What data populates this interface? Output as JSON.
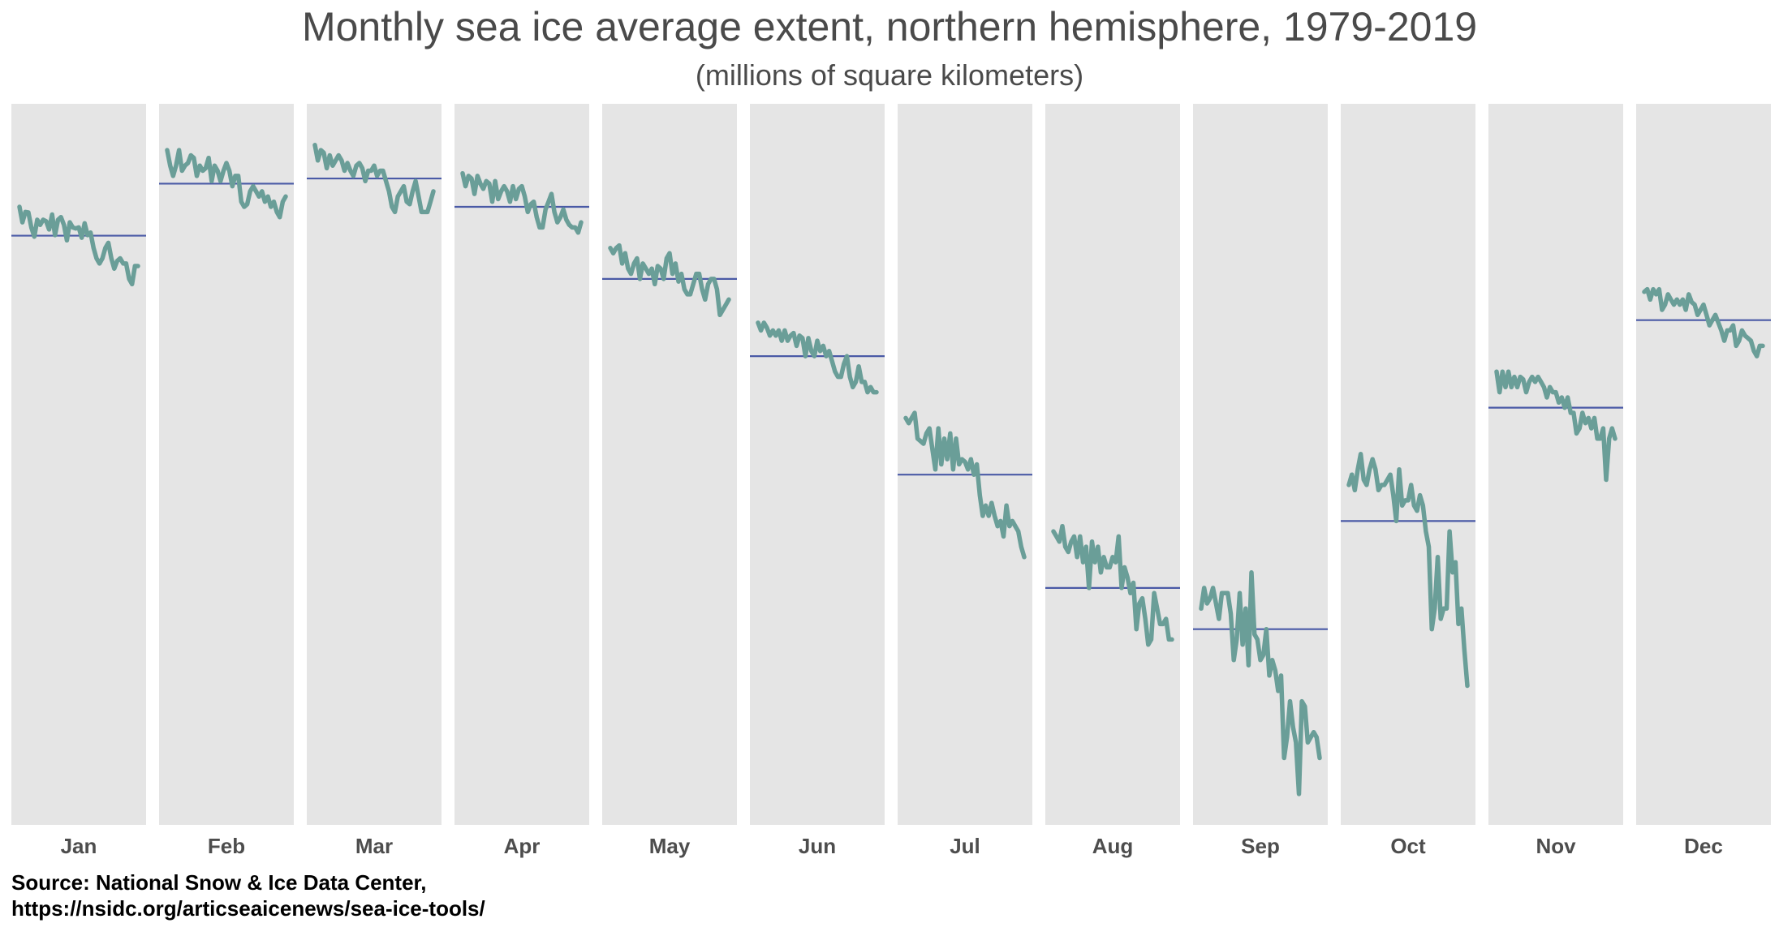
{
  "title": "Monthly sea ice average extent, northern hemisphere, 1979-2019",
  "subtitle": "(millions of square kilometers)",
  "source_line1": "Source: National Snow & Ice Data Center,",
  "source_line2": "https://nsidc.org/articseaicenews/sea-ice-tools/",
  "colors": {
    "panel_bg": "#e5e5e5",
    "series": "#6a9e98",
    "mean_line": "#4a5aa6"
  },
  "chart_data": {
    "type": "line",
    "title": "Monthly sea ice average extent, northern hemisphere, 1979-2019",
    "subtitle": "(millions of square kilometers)",
    "x": [
      1979,
      1980,
      1981,
      1982,
      1983,
      1984,
      1985,
      1986,
      1987,
      1988,
      1989,
      1990,
      1991,
      1992,
      1993,
      1994,
      1995,
      1996,
      1997,
      1998,
      1999,
      2000,
      2001,
      2002,
      2003,
      2004,
      2005,
      2006,
      2007,
      2008,
      2009,
      2010,
      2011,
      2012,
      2013,
      2014,
      2015,
      2016,
      2017,
      2018,
      2019
    ],
    "ylim": [
      3.0,
      17.0
    ],
    "grid": false,
    "facets": [
      {
        "label": "Jan",
        "mean": 14.44,
        "values": [
          15.0,
          14.7,
          14.9,
          14.89,
          14.6,
          14.42,
          14.75,
          14.65,
          14.75,
          14.72,
          14.56,
          14.85,
          14.45,
          14.75,
          14.8,
          14.65,
          14.35,
          14.7,
          14.6,
          14.58,
          14.6,
          14.4,
          14.68,
          14.45,
          14.5,
          14.2,
          14.0,
          13.9,
          14.0,
          14.2,
          14.3,
          14.0,
          13.8,
          13.95,
          14.0,
          13.9,
          13.9,
          13.6,
          13.5,
          13.85,
          13.85
        ]
      },
      {
        "label": "Feb",
        "mean": 15.45,
        "values": [
          16.1,
          15.8,
          15.6,
          15.8,
          16.1,
          15.7,
          15.8,
          15.85,
          16.0,
          15.95,
          15.6,
          15.8,
          15.7,
          15.75,
          15.95,
          15.5,
          15.8,
          15.7,
          15.5,
          15.7,
          15.85,
          15.7,
          15.4,
          15.6,
          15.6,
          15.1,
          15.0,
          15.05,
          15.3,
          15.4,
          15.3,
          15.2,
          15.3,
          15.1,
          15.2,
          15.0,
          15.1,
          14.9,
          14.8,
          15.1,
          15.2
        ]
      },
      {
        "label": "Mar",
        "mean": 15.55,
        "values": [
          16.2,
          15.9,
          16.1,
          16.05,
          15.75,
          16.0,
          15.8,
          15.9,
          16.0,
          15.9,
          15.7,
          15.85,
          15.7,
          15.6,
          15.8,
          15.85,
          15.75,
          15.5,
          15.7,
          15.7,
          15.8,
          15.6,
          15.7,
          15.7,
          15.5,
          15.3,
          15.0,
          14.9,
          15.2,
          15.3,
          15.4,
          15.1,
          15.05,
          15.3,
          15.5,
          15.2,
          14.9,
          14.9,
          14.9,
          15.1,
          15.3
        ]
      },
      {
        "label": "Apr",
        "mean": 15.0,
        "values": [
          15.65,
          15.4,
          15.6,
          15.55,
          15.25,
          15.6,
          15.45,
          15.35,
          15.5,
          15.45,
          15.1,
          15.5,
          15.15,
          15.3,
          15.4,
          15.3,
          15.1,
          15.4,
          15.15,
          15.35,
          15.4,
          15.2,
          14.9,
          15.05,
          15.1,
          14.8,
          14.6,
          14.6,
          14.95,
          15.1,
          15.25,
          14.9,
          14.7,
          14.8,
          14.95,
          14.75,
          14.65,
          14.6,
          14.6,
          14.5,
          14.7
        ]
      },
      {
        "label": "May",
        "mean": 13.6,
        "values": [
          14.2,
          14.1,
          14.2,
          14.25,
          13.9,
          14.1,
          13.8,
          13.7,
          13.9,
          14.0,
          13.6,
          13.9,
          13.8,
          13.7,
          13.8,
          13.5,
          13.85,
          13.8,
          13.6,
          14.0,
          14.1,
          13.7,
          13.9,
          13.55,
          13.7,
          13.4,
          13.3,
          13.3,
          13.5,
          13.7,
          13.7,
          13.4,
          13.2,
          13.5,
          13.6,
          13.6,
          13.4,
          12.9,
          13.0,
          13.1,
          13.2
        ]
      },
      {
        "label": "Jun",
        "mean": 12.1,
        "values": [
          12.75,
          12.6,
          12.75,
          12.65,
          12.5,
          12.6,
          12.5,
          12.6,
          12.4,
          12.6,
          12.4,
          12.5,
          12.55,
          12.3,
          12.5,
          12.45,
          12.1,
          12.45,
          12.2,
          12.1,
          12.4,
          12.2,
          12.3,
          12.1,
          12.2,
          12.0,
          11.8,
          11.7,
          11.7,
          11.95,
          12.1,
          11.7,
          11.5,
          11.6,
          11.9,
          11.6,
          11.6,
          11.4,
          11.5,
          11.4,
          11.4
        ]
      },
      {
        "label": "Jul",
        "mean": 9.8,
        "values": [
          10.9,
          10.8,
          10.9,
          11.0,
          10.5,
          10.45,
          10.4,
          10.6,
          10.7,
          10.3,
          9.9,
          10.7,
          10.0,
          10.5,
          10.1,
          10.6,
          9.9,
          10.5,
          10.0,
          10.1,
          10.05,
          9.9,
          10.1,
          9.8,
          10.0,
          9.4,
          9.0,
          9.2,
          9.0,
          9.25,
          9.0,
          8.8,
          8.9,
          8.6,
          9.2,
          8.8,
          8.9,
          8.8,
          8.7,
          8.4,
          8.2
        ]
      },
      {
        "label": "Aug",
        "mean": 7.6,
        "values": [
          8.7,
          8.6,
          8.5,
          8.8,
          8.4,
          8.3,
          8.5,
          8.6,
          8.2,
          8.6,
          8.1,
          8.4,
          7.6,
          8.5,
          8.1,
          8.4,
          7.9,
          8.2,
          8.0,
          8.0,
          8.2,
          8.1,
          8.6,
          7.6,
          8.0,
          7.8,
          7.5,
          7.7,
          6.8,
          7.3,
          7.4,
          7.0,
          6.5,
          6.6,
          7.5,
          7.2,
          6.9,
          6.9,
          7.0,
          6.6,
          6.6
        ]
      },
      {
        "label": "Sep",
        "mean": 6.8,
        "values": [
          7.2,
          7.6,
          7.3,
          7.4,
          7.6,
          7.3,
          7.0,
          7.5,
          7.5,
          7.5,
          7.1,
          6.2,
          6.6,
          7.5,
          6.5,
          7.2,
          6.1,
          7.9,
          6.7,
          6.6,
          6.2,
          6.3,
          6.8,
          5.9,
          6.2,
          6.0,
          5.6,
          5.9,
          4.3,
          4.7,
          5.4,
          4.9,
          4.6,
          3.6,
          5.4,
          5.3,
          4.6,
          4.7,
          4.8,
          4.7,
          4.3
        ]
      },
      {
        "label": "Oct",
        "mean": 8.9,
        "values": [
          9.6,
          9.8,
          9.5,
          9.9,
          10.2,
          9.7,
          9.6,
          9.9,
          10.1,
          9.9,
          9.5,
          9.6,
          9.6,
          9.7,
          9.8,
          9.4,
          8.9,
          9.9,
          9.2,
          9.3,
          9.3,
          9.6,
          9.2,
          9.1,
          9.4,
          9.2,
          8.7,
          8.4,
          6.8,
          7.2,
          8.2,
          7.0,
          7.2,
          7.2,
          8.7,
          7.9,
          8.1,
          6.9,
          7.2,
          6.4,
          5.7
        ]
      },
      {
        "label": "Nov",
        "mean": 11.1,
        "values": [
          11.8,
          11.4,
          11.8,
          11.5,
          11.8,
          11.5,
          11.7,
          11.5,
          11.7,
          11.65,
          11.4,
          11.6,
          11.7,
          11.6,
          11.7,
          11.6,
          11.5,
          11.3,
          11.5,
          11.4,
          11.4,
          11.2,
          11.3,
          11.1,
          11.3,
          11.0,
          11.0,
          10.6,
          10.7,
          11.0,
          10.8,
          10.9,
          10.7,
          10.9,
          10.5,
          10.5,
          10.7,
          9.7,
          10.5,
          10.7,
          10.5
        ]
      },
      {
        "label": "Dec",
        "mean": 12.8,
        "values": [
          13.35,
          13.4,
          13.2,
          13.4,
          13.3,
          13.4,
          13.0,
          13.1,
          13.3,
          13.2,
          13.1,
          13.2,
          13.1,
          13.2,
          13.0,
          13.3,
          13.15,
          13.1,
          12.9,
          13.0,
          13.1,
          12.9,
          12.7,
          12.8,
          12.9,
          12.75,
          12.6,
          12.4,
          12.6,
          12.6,
          12.7,
          12.3,
          12.4,
          12.6,
          12.5,
          12.45,
          12.4,
          12.2,
          12.1,
          12.3,
          12.3
        ]
      }
    ]
  }
}
